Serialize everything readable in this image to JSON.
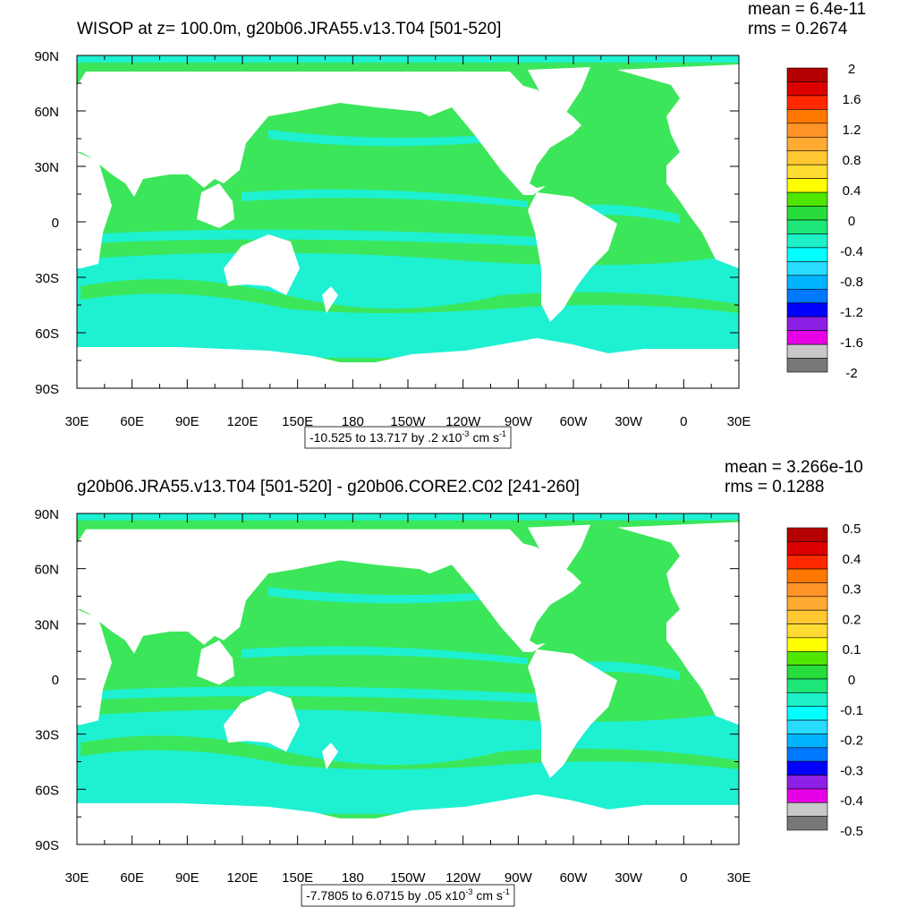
{
  "panels": [
    {
      "title": "WISOP at z= 100.0m, g20b06.JRA55.v13.T04 [501-520]",
      "mean": "mean = 6.4e-11",
      "rms": "rms = 0.2674",
      "lat_labels": [
        "90N",
        "60N",
        "30N",
        "0",
        "30S",
        "60S",
        "90S"
      ],
      "lon_labels": [
        "30E",
        "60E",
        "90E",
        "120E",
        "150E",
        "180",
        "150W",
        "120W",
        "90W",
        "60W",
        "30W",
        "0",
        "30E"
      ],
      "colorbar": {
        "labels": [
          "2",
          "1.6",
          "1.2",
          "0.8",
          "0.4",
          "0",
          "-0.4",
          "-0.8",
          "-1.2",
          "-1.6",
          "-2"
        ],
        "colors": [
          "#b40000",
          "#dc0000",
          "#ff2800",
          "#ff7800",
          "#ff9428",
          "#ffaa32",
          "#ffc832",
          "#ffdc32",
          "#ffff00",
          "#50e600",
          "#28dc3c",
          "#1ee678",
          "#1ef0c8",
          "#00ffff",
          "#28dcff",
          "#00b4ff",
          "#0078ff",
          "#0000ff",
          "#8c1ee6",
          "#e600e6"
        ],
        "grays": [
          "#c8c8c8",
          "#787878"
        ]
      },
      "footer": {
        "text": "-10.525 to 13.717 by .2 x10",
        "exponent": "-3",
        "unit": "cm s",
        "unit_exponent": "-1"
      }
    },
    {
      "title": "g20b06.JRA55.v13.T04 [501-520] - g20b06.CORE2.C02 [241-260]",
      "mean": "mean = 3.266e-10",
      "rms": "rms = 0.1288",
      "lat_labels": [
        "90N",
        "60N",
        "30N",
        "0",
        "30S",
        "60S",
        "90S"
      ],
      "lon_labels": [
        "30E",
        "60E",
        "90E",
        "120E",
        "150E",
        "180",
        "150W",
        "120W",
        "90W",
        "60W",
        "30W",
        "0",
        "30E"
      ],
      "colorbar": {
        "labels": [
          "0.5",
          "0.4",
          "0.3",
          "0.2",
          "0.1",
          "0",
          "-0.1",
          "-0.2",
          "-0.3",
          "-0.4",
          "-0.5"
        ],
        "colors": [
          "#b40000",
          "#dc0000",
          "#ff2800",
          "#ff7800",
          "#ff9428",
          "#ffaa32",
          "#ffc832",
          "#ffdc32",
          "#ffff00",
          "#50e600",
          "#28dc3c",
          "#1ee678",
          "#1ef0c8",
          "#00ffff",
          "#28dcff",
          "#00b4ff",
          "#0078ff",
          "#0000ff",
          "#8c1ee6",
          "#e600e6"
        ],
        "grays": [
          "#c8c8c8",
          "#787878"
        ]
      },
      "footer": {
        "text": "-7.7805 to 6.0715 by .05 x10",
        "exponent": "-3",
        "unit": "cm s",
        "unit_exponent": "-1"
      }
    }
  ]
}
